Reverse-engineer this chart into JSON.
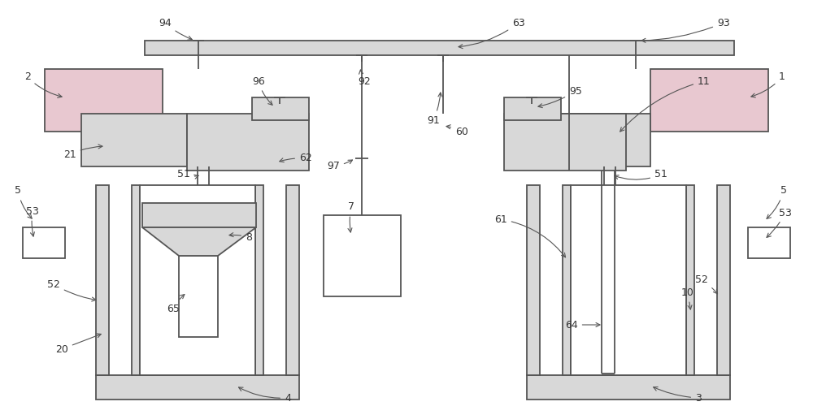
{
  "bg_color": "#ffffff",
  "line_color": "#555555",
  "label_color": "#333333",
  "pink_fill": "#e8c8d0",
  "green_fill": "#c8d8c0",
  "light_gray": "#d8d8d8",
  "white": "#ffffff"
}
